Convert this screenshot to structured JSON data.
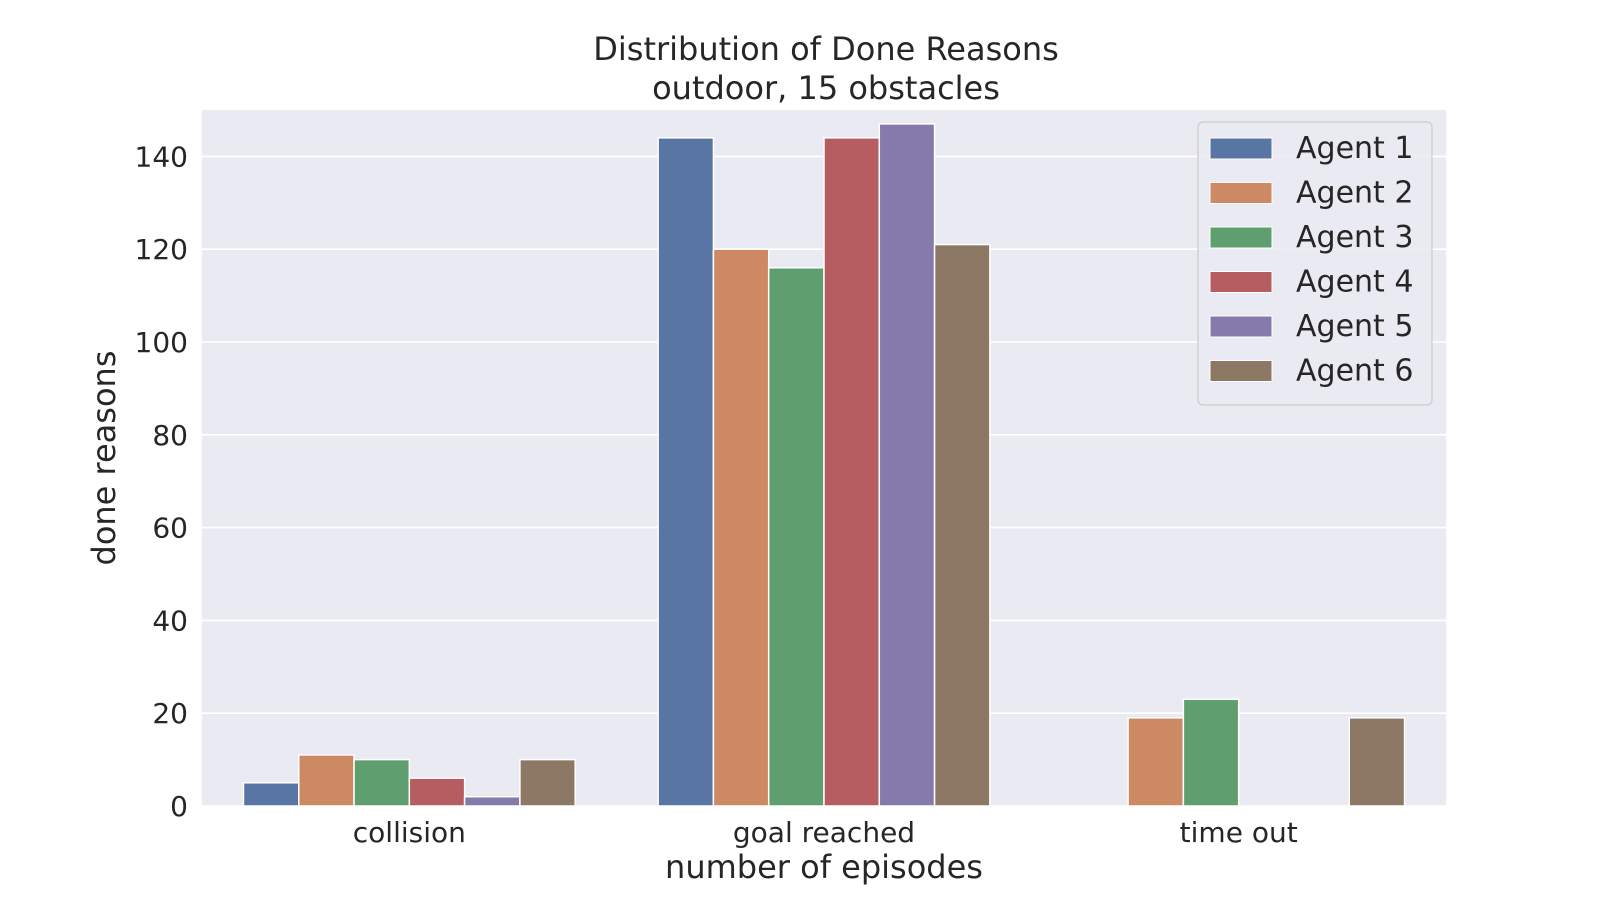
{
  "chart_data": {
    "type": "bar",
    "title": "Distribution of Done Reasons",
    "subtitle": "outdoor, 15 obstacles",
    "xlabel": "number of episodes",
    "ylabel": "done reasons",
    "categories": [
      "collision",
      "goal reached",
      "time out"
    ],
    "ylim": [
      0,
      150
    ],
    "yticks": [
      0,
      20,
      40,
      60,
      80,
      100,
      120,
      140
    ],
    "grid": true,
    "legend_position": "top-right",
    "series": [
      {
        "name": "Agent 1",
        "color": "#5975a4",
        "values": [
          5,
          144,
          0
        ]
      },
      {
        "name": "Agent 2",
        "color": "#cc8963",
        "values": [
          11,
          120,
          19
        ]
      },
      {
        "name": "Agent 3",
        "color": "#5f9e6e",
        "values": [
          10,
          116,
          23
        ]
      },
      {
        "name": "Agent 4",
        "color": "#b55d60",
        "values": [
          6,
          144,
          0
        ]
      },
      {
        "name": "Agent 5",
        "color": "#857aab",
        "values": [
          2,
          147,
          0
        ]
      },
      {
        "name": "Agent 6",
        "color": "#8d7866",
        "values": [
          10,
          121,
          19
        ]
      }
    ]
  },
  "colors": {
    "plot_background": "#eaeaf2",
    "grid": "#ffffff",
    "text": "#262626"
  }
}
